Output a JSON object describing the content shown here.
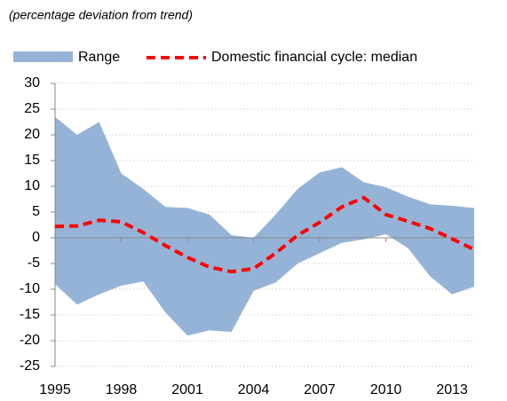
{
  "chart_data": {
    "type": "range_line",
    "subtitle": "(percentage deviation from trend)",
    "x": [
      1995,
      1996,
      1997,
      1998,
      1999,
      2000,
      2001,
      2002,
      2003,
      2004,
      2005,
      2006,
      2007,
      2008,
      2009,
      2010,
      2011,
      2012,
      2013,
      2014
    ],
    "xlim": [
      1995,
      2014
    ],
    "xticks": [
      1995,
      1998,
      2001,
      2004,
      2007,
      2010,
      2013
    ],
    "ylim": [
      -25,
      30
    ],
    "yticks": [
      -25,
      -20,
      -15,
      -10,
      -5,
      0,
      5,
      10,
      15,
      20,
      25,
      30
    ],
    "grid": true,
    "series": [
      {
        "name": "Range",
        "color": "#95b3d7",
        "high": [
          23.5,
          20,
          22.5,
          12.5,
          9.5,
          6,
          5.8,
          4.5,
          0.5,
          0,
          4.5,
          9.5,
          12.7,
          13.7,
          10.8,
          9.8,
          8,
          6.5,
          6.2,
          5.8
        ],
        "low": [
          -9,
          -13,
          -11,
          -9.3,
          -8.5,
          -14.5,
          -19,
          -18,
          -18.3,
          -10.3,
          -8.7,
          -5,
          -3,
          -1,
          -0.3,
          0.7,
          -2,
          -7.5,
          -11,
          -9.5
        ]
      },
      {
        "name": "Domestic financial cycle: median",
        "color": "#ff0000",
        "values": [
          2.2,
          2.3,
          3.4,
          3.1,
          1,
          -1.5,
          -3.8,
          -5.7,
          -6.6,
          -6,
          -3,
          0.5,
          3,
          6,
          7.8,
          4.5,
          3.2,
          1.8,
          -0.2,
          -2.3
        ]
      }
    ]
  }
}
